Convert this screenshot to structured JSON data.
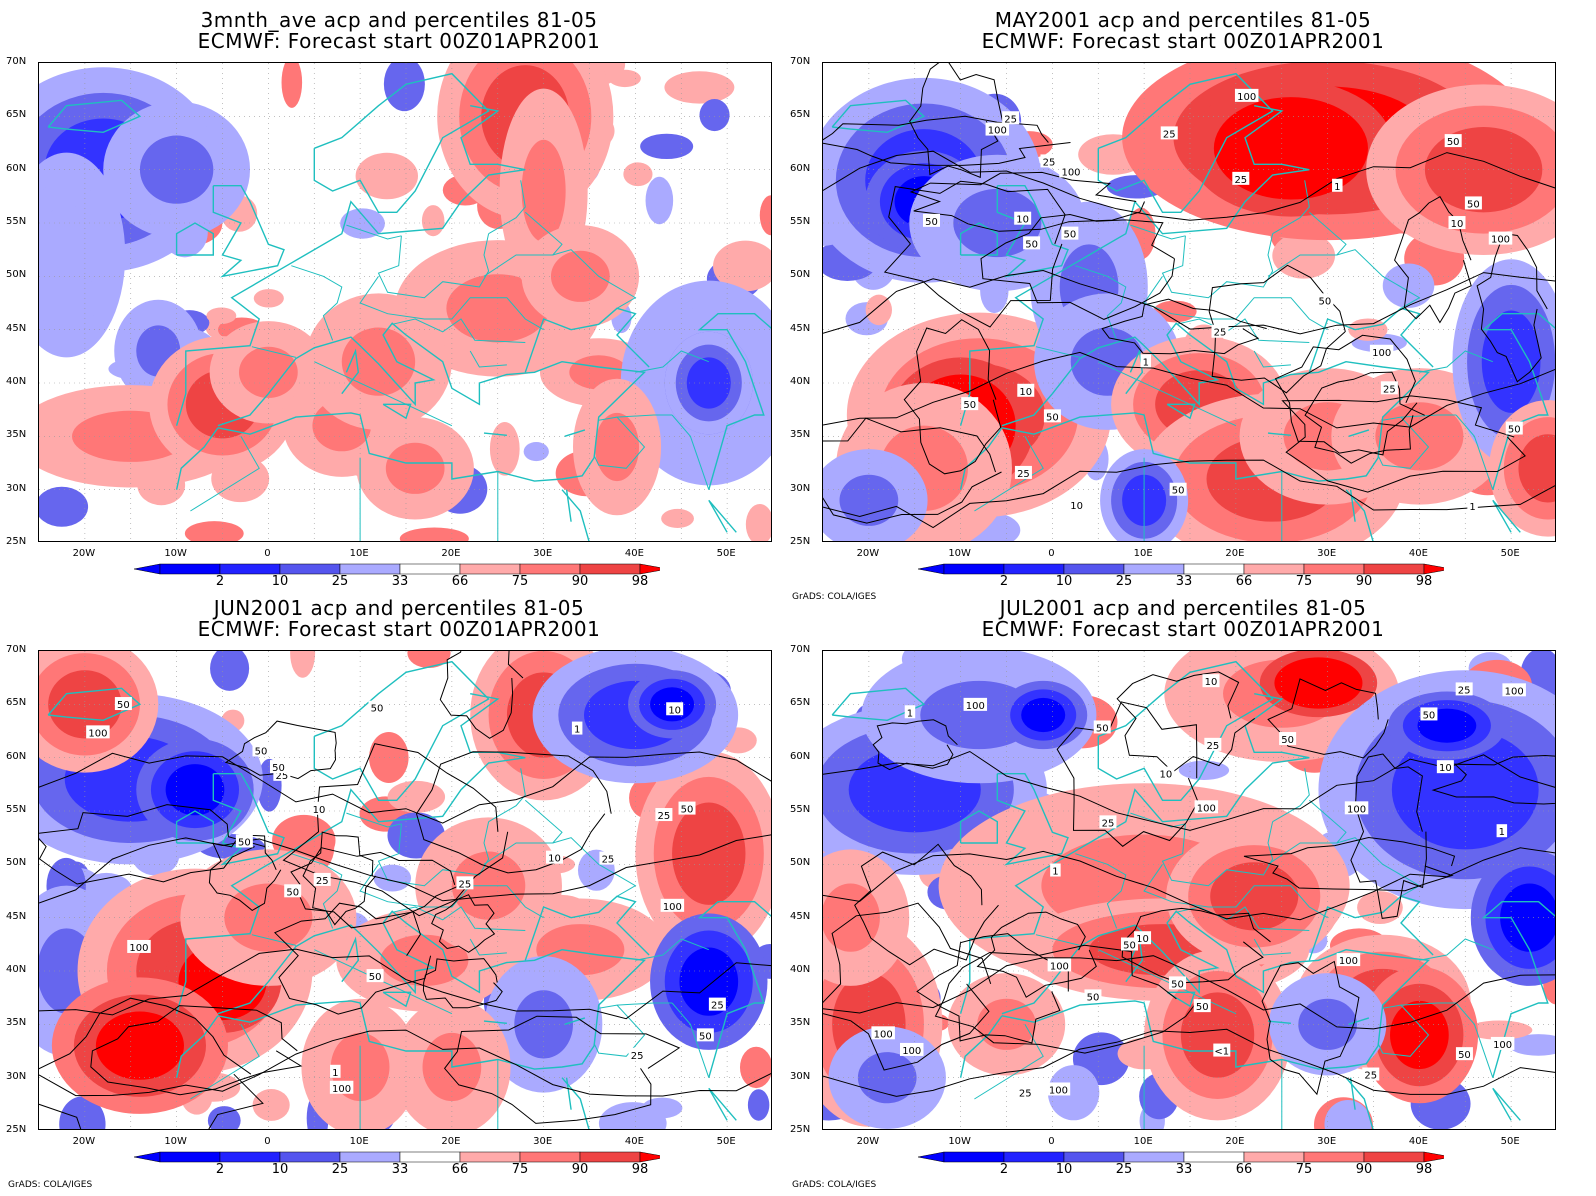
{
  "panels": [
    {
      "title_line1": "3mnth_ave acp and percentiles 81-05",
      "title_line2": "ECMWF: Forecast start 00Z01APR2001",
      "credit": "",
      "contour_labels": []
    },
    {
      "title_line1": "MAY2001 acp and percentiles 81-05",
      "title_line2": "ECMWF: Forecast start 00Z01APR2001",
      "credit": "GrADS: COLA/IGES",
      "contour_labels": [
        "50",
        "50",
        "50",
        "50",
        "50",
        "100",
        "100",
        "100",
        "25",
        "50",
        "25",
        "50",
        "100",
        "25",
        "25",
        "10",
        "50",
        "10",
        "25",
        "50",
        "25",
        "1",
        "50",
        "10",
        "100",
        "10",
        "1",
        "1",
        "25"
      ]
    },
    {
      "title_line1": "JUN2001 acp and percentiles 81-05",
      "title_line2": "ECMWF: Forecast start 00Z01APR2001",
      "credit": "GrADS: COLA/IGES",
      "contour_labels": [
        "50",
        "50",
        "100",
        "50",
        "50",
        "50",
        "100",
        "25",
        "100",
        "50",
        "25",
        "50",
        "25",
        "25",
        "10",
        "1",
        "25",
        "50",
        "25",
        "100",
        "50",
        "25",
        "10",
        "10",
        "1"
      ]
    },
    {
      "title_line1": "JUL2001 acp and percentiles 81-05",
      "title_line2": "ECMWF: Forecast start 00Z01APR2001",
      "credit": "GrADS: COLA/IGES",
      "contour_labels": [
        "100",
        "100",
        "50",
        "100",
        "50",
        "100",
        "50",
        "100",
        "50",
        "100",
        "50",
        "100",
        "100",
        "100",
        "50",
        "25",
        "10",
        "50",
        "25",
        "100",
        "10",
        "25",
        "25",
        "50",
        "<1",
        "1",
        "1",
        "10",
        "25",
        "10",
        "1"
      ]
    }
  ],
  "map": {
    "lat_labels": [
      "70N",
      "65N",
      "60N",
      "55N",
      "50N",
      "45N",
      "40N",
      "35N",
      "30N",
      "25N"
    ],
    "lon_labels": [
      "20W",
      "10W",
      "0",
      "10E",
      "20E",
      "30E",
      "40E",
      "50E"
    ]
  },
  "colorbar": {
    "labels": [
      "2",
      "10",
      "25",
      "33",
      "66",
      "75",
      "90",
      "98"
    ],
    "colors": [
      "#0000ff",
      "#3333ff",
      "#6666ee",
      "#aaaaff",
      "#ffffff",
      "#ffaaaa",
      "#ff7777",
      "#ee4444",
      "#ff0000",
      "#ff0000"
    ]
  }
}
